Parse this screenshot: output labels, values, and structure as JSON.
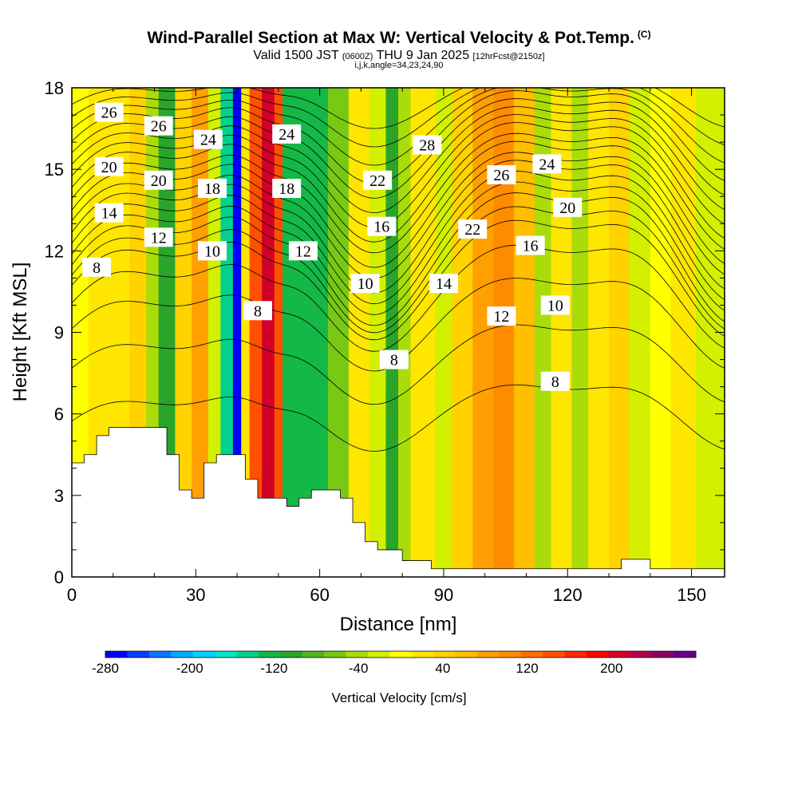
{
  "chart_data": {
    "type": "heatmap",
    "title": "Wind-Parallel Section at Max W: Vertical Velocity & Pot.Temp.",
    "copyright": "(C)",
    "subtitle_main": "Valid 1500 JST",
    "subtitle_utc": "(0600Z)",
    "subtitle_date": "THU 9 Jan 2025",
    "subtitle_fcst": "[12hrFcst@2150z]",
    "subtitle_ijk": "i,j,k,angle=34,23,24,90",
    "xlabel": "Distance [nm]",
    "ylabel": "Height [Kft MSL]",
    "xlim": [
      0,
      158
    ],
    "ylim": [
      0,
      18
    ],
    "x_ticks": [
      "0",
      "30",
      "60",
      "90",
      "120",
      "150"
    ],
    "x_tick_values": [
      0,
      30,
      60,
      90,
      120,
      150
    ],
    "y_ticks": [
      "0",
      "3",
      "6",
      "9",
      "12",
      "15",
      "18"
    ],
    "y_tick_values": [
      0,
      3,
      6,
      9,
      12,
      15,
      18
    ],
    "colorbar": {
      "label": "Vertical Velocity [cm/s]",
      "min": -280,
      "max": 280,
      "tick_labels": [
        "-280",
        "-200",
        "-120",
        "-40",
        "40",
        "120",
        "200"
      ],
      "tick_values": [
        -280,
        -200,
        -120,
        -40,
        40,
        120,
        200
      ],
      "colors": [
        "#0000ff",
        "#0a3cff",
        "#0a78ff",
        "#00aaff",
        "#00d2ff",
        "#00e6c8",
        "#00d28c",
        "#14b846",
        "#2aa42a",
        "#50b41e",
        "#78c814",
        "#aadc0a",
        "#d2f000",
        "#ffff00",
        "#ffe600",
        "#ffd200",
        "#ffbe00",
        "#ffa000",
        "#ff8c00",
        "#ff6e00",
        "#ff5000",
        "#ff2800",
        "#ff0000",
        "#d20028",
        "#b4004b",
        "#8c0064",
        "#64008c"
      ]
    },
    "vertical_velocity_bands": [
      {
        "x0": 0,
        "x1": 4,
        "w": 10
      },
      {
        "x0": 4,
        "x1": 9,
        "w": 30
      },
      {
        "x0": 9,
        "x1": 14,
        "w": 20
      },
      {
        "x0": 14,
        "x1": 18,
        "w": 50
      },
      {
        "x0": 18,
        "x1": 21,
        "w": -40
      },
      {
        "x0": 21,
        "x1": 25,
        "w": -110
      },
      {
        "x0": 25,
        "x1": 29,
        "w": 40
      },
      {
        "x0": 29,
        "x1": 33,
        "w": 90
      },
      {
        "x0": 33,
        "x1": 36,
        "w": -30
      },
      {
        "x0": 36,
        "x1": 39,
        "w": -150
      },
      {
        "x0": 39,
        "x1": 41,
        "w": -260
      },
      {
        "x0": 41,
        "x1": 43,
        "w": 30
      },
      {
        "x0": 43,
        "x1": 46,
        "w": 150
      },
      {
        "x0": 46,
        "x1": 49,
        "w": 210
      },
      {
        "x0": 49,
        "x1": 51,
        "w": 150
      },
      {
        "x0": 51,
        "x1": 56,
        "w": -120
      },
      {
        "x0": 56,
        "x1": 62,
        "w": -130
      },
      {
        "x0": 62,
        "x1": 67,
        "w": -60
      },
      {
        "x0": 67,
        "x1": 72,
        "w": 20
      },
      {
        "x0": 72,
        "x1": 76,
        "w": -20
      },
      {
        "x0": 76,
        "x1": 79,
        "w": -110
      },
      {
        "x0": 79,
        "x1": 82,
        "w": -40
      },
      {
        "x0": 82,
        "x1": 88,
        "w": 20
      },
      {
        "x0": 88,
        "x1": 92,
        "w": -30
      },
      {
        "x0": 92,
        "x1": 97,
        "w": 40
      },
      {
        "x0": 97,
        "x1": 102,
        "w": 80
      },
      {
        "x0": 102,
        "x1": 107,
        "w": 110
      },
      {
        "x0": 107,
        "x1": 112,
        "w": 60
      },
      {
        "x0": 112,
        "x1": 116,
        "w": -40
      },
      {
        "x0": 116,
        "x1": 121,
        "w": 30
      },
      {
        "x0": 121,
        "x1": 125,
        "w": -40
      },
      {
        "x0": 125,
        "x1": 130,
        "w": 20
      },
      {
        "x0": 130,
        "x1": 135,
        "w": 40
      },
      {
        "x0": 135,
        "x1": 140,
        "w": -30
      },
      {
        "x0": 140,
        "x1": 145,
        "w": 10
      },
      {
        "x0": 145,
        "x1": 151,
        "w": 30
      },
      {
        "x0": 151,
        "x1": 158,
        "w": -20
      }
    ],
    "terrain_profile": [
      {
        "x": 0,
        "h": 4.2
      },
      {
        "x": 3,
        "h": 4.2
      },
      {
        "x": 3,
        "h": 4.5
      },
      {
        "x": 6,
        "h": 4.5
      },
      {
        "x": 6,
        "h": 5.2
      },
      {
        "x": 9,
        "h": 5.2
      },
      {
        "x": 9,
        "h": 5.5
      },
      {
        "x": 23,
        "h": 5.5
      },
      {
        "x": 23,
        "h": 4.5
      },
      {
        "x": 26,
        "h": 4.5
      },
      {
        "x": 26,
        "h": 3.2
      },
      {
        "x": 29,
        "h": 3.2
      },
      {
        "x": 29,
        "h": 2.9
      },
      {
        "x": 32,
        "h": 2.9
      },
      {
        "x": 32,
        "h": 4.2
      },
      {
        "x": 35,
        "h": 4.2
      },
      {
        "x": 35,
        "h": 4.5
      },
      {
        "x": 42,
        "h": 4.5
      },
      {
        "x": 42,
        "h": 3.6
      },
      {
        "x": 45,
        "h": 3.6
      },
      {
        "x": 45,
        "h": 2.9
      },
      {
        "x": 52,
        "h": 2.9
      },
      {
        "x": 52,
        "h": 2.6
      },
      {
        "x": 55,
        "h": 2.6
      },
      {
        "x": 55,
        "h": 2.9
      },
      {
        "x": 58,
        "h": 2.9
      },
      {
        "x": 58,
        "h": 3.2
      },
      {
        "x": 65,
        "h": 3.2
      },
      {
        "x": 65,
        "h": 2.9
      },
      {
        "x": 68,
        "h": 2.9
      },
      {
        "x": 68,
        "h": 2.0
      },
      {
        "x": 71,
        "h": 2.0
      },
      {
        "x": 71,
        "h": 1.3
      },
      {
        "x": 74,
        "h": 1.3
      },
      {
        "x": 74,
        "h": 1.0
      },
      {
        "x": 80,
        "h": 1.0
      },
      {
        "x": 80,
        "h": 0.6
      },
      {
        "x": 87,
        "h": 0.6
      },
      {
        "x": 87,
        "h": 0.3
      },
      {
        "x": 133,
        "h": 0.3
      },
      {
        "x": 133,
        "h": 0.65
      },
      {
        "x": 140,
        "h": 0.65
      },
      {
        "x": 140,
        "h": 0.3
      },
      {
        "x": 158,
        "h": 0.3
      }
    ],
    "theta_isolines": [
      {
        "base": 6.0,
        "amp": 1.0,
        "first_row": 0
      },
      {
        "base": 8.0,
        "amp": 1.2,
        "first_row": 0
      },
      {
        "base": 9.5,
        "amp": 1.4,
        "first_row": 0
      },
      {
        "base": 10.5,
        "amp": 1.6,
        "first_row": 0
      },
      {
        "base": 11.2,
        "amp": 1.8,
        "first_row": 0
      },
      {
        "base": 11.6,
        "amp": 1.9,
        "first_row": 0
      },
      {
        "base": 12.0,
        "amp": 2.0,
        "first_row": 0
      },
      {
        "base": 12.4,
        "amp": 2.0,
        "first_row": 0
      },
      {
        "base": 12.8,
        "amp": 2.0,
        "first_row": 0
      },
      {
        "base": 13.2,
        "amp": 2.0,
        "first_row": 0
      },
      {
        "base": 13.6,
        "amp": 1.9,
        "first_row": 0
      },
      {
        "base": 14.0,
        "amp": 1.9,
        "first_row": 0
      },
      {
        "base": 14.4,
        "amp": 1.8,
        "first_row": 0
      },
      {
        "base": 14.8,
        "amp": 1.8,
        "first_row": 0
      },
      {
        "base": 15.2,
        "amp": 1.7,
        "first_row": 0
      },
      {
        "base": 15.6,
        "amp": 1.6,
        "first_row": 0
      },
      {
        "base": 16.0,
        "amp": 1.5,
        "first_row": 0
      },
      {
        "base": 16.4,
        "amp": 1.4,
        "first_row": 0
      },
      {
        "base": 16.8,
        "amp": 1.2,
        "first_row": 0
      },
      {
        "base": 17.2,
        "amp": 1.0,
        "first_row": 0
      },
      {
        "base": 17.6,
        "amp": 0.8,
        "first_row": 0
      }
    ],
    "isoline_labels": [
      {
        "text": "26",
        "x": 9,
        "y": 17.1
      },
      {
        "text": "26",
        "x": 21,
        "y": 16.6
      },
      {
        "text": "24",
        "x": 33,
        "y": 16.1
      },
      {
        "text": "24",
        "x": 52,
        "y": 16.3
      },
      {
        "text": "28",
        "x": 86,
        "y": 15.9
      },
      {
        "text": "20",
        "x": 9,
        "y": 15.1
      },
      {
        "text": "20",
        "x": 21,
        "y": 14.6
      },
      {
        "text": "18",
        "x": 34,
        "y": 14.3
      },
      {
        "text": "18",
        "x": 52,
        "y": 14.3
      },
      {
        "text": "22",
        "x": 74,
        "y": 14.6
      },
      {
        "text": "26",
        "x": 104,
        "y": 14.8
      },
      {
        "text": "24",
        "x": 115,
        "y": 15.2
      },
      {
        "text": "14",
        "x": 9,
        "y": 13.4
      },
      {
        "text": "12",
        "x": 21,
        "y": 12.5
      },
      {
        "text": "10",
        "x": 34,
        "y": 12.0
      },
      {
        "text": "12",
        "x": 56,
        "y": 12.0
      },
      {
        "text": "16",
        "x": 75,
        "y": 12.9
      },
      {
        "text": "22",
        "x": 97,
        "y": 12.8
      },
      {
        "text": "20",
        "x": 120,
        "y": 13.6
      },
      {
        "text": "8",
        "x": 6,
        "y": 11.4
      },
      {
        "text": "16",
        "x": 111,
        "y": 12.2
      },
      {
        "text": "10",
        "x": 71,
        "y": 10.8
      },
      {
        "text": "14",
        "x": 90,
        "y": 10.8
      },
      {
        "text": "10",
        "x": 117,
        "y": 10.0
      },
      {
        "text": "8",
        "x": 45,
        "y": 9.8
      },
      {
        "text": "12",
        "x": 104,
        "y": 9.6
      },
      {
        "text": "8",
        "x": 78,
        "y": 8.0
      },
      {
        "text": "8",
        "x": 117,
        "y": 7.2
      }
    ]
  }
}
